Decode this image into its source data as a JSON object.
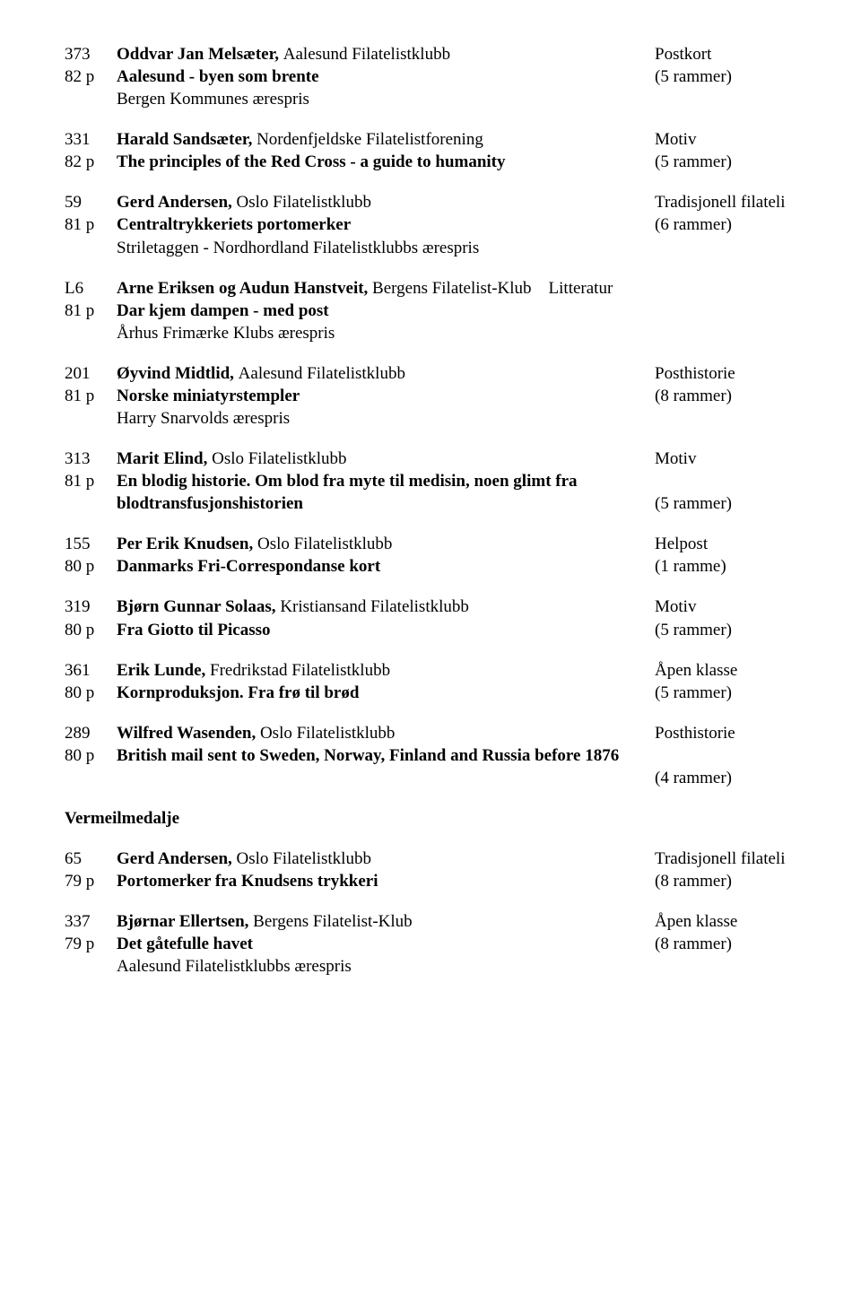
{
  "entries": [
    {
      "l1_left": "373",
      "l1_mid_b": "Oddvar Jan Melsæter, ",
      "l1_mid_n": "Aalesund Filatelistklubb",
      "l1_right": "Postkort",
      "l2_left": "82 p",
      "l2_mid_b": "Aalesund - byen som brente",
      "l2_right": "(5 rammer)",
      "l3_mid_n": "Bergen Kommunes ærespris"
    },
    {
      "l1_left": "331",
      "l1_mid_b": "Harald Sandsæter, ",
      "l1_mid_n": "Nordenfjeldske Filatelistforening",
      "l1_right": "Motiv",
      "l2_left": "82 p",
      "l2_mid_b": "The principles of the Red Cross - a guide to humanity",
      "l2_right": "(5 rammer)"
    },
    {
      "l1_left": "59",
      "l1_mid_b": "Gerd Andersen, ",
      "l1_mid_n": "Oslo Filatelistklubb",
      "l1_right": "Tradisjonell filateli",
      "l2_left": "81 p",
      "l2_mid_b": "Centraltrykkeriets portomerker",
      "l2_right": "(6 rammer)",
      "l3_mid_n": "Striletaggen - Nordhordland Filatelistklubbs ærespris"
    },
    {
      "l1_left": "L6",
      "l1_mid_b": "Arne Eriksen og Audun Hanstveit, ",
      "l1_mid_n": "Bergens Filatelist-Klub",
      "l1_right_inline": "Litteratur",
      "l2_left": "81 p",
      "l2_mid_b": "Dar kjem dampen - med post",
      "l3_mid_n": "Århus Frimærke Klubs ærespris"
    },
    {
      "l1_left": "201",
      "l1_mid_b": "Øyvind Midtlid, ",
      "l1_mid_n": "Aalesund Filatelistklubb",
      "l1_right": "Posthistorie",
      "l2_left": "81 p",
      "l2_mid_b": "Norske miniatyrstempler",
      "l2_right": "(8 rammer)",
      "l3_mid_n": "Harry Snarvolds ærespris"
    },
    {
      "l1_left": "313",
      "l1_mid_b": "Marit Elind, ",
      "l1_mid_n": "Oslo Filatelistklubb",
      "l1_right": "Motiv",
      "l2_left": "81 p",
      "l2_mid_b": "En blodig historie. Om blod fra myte til medisin, noen glimt fra",
      "l2b_mid_b": "blodtransfusjonshistorien",
      "l2b_right": "(5 rammer)"
    },
    {
      "l1_left": "155",
      "l1_mid_b": "Per Erik Knudsen, ",
      "l1_mid_n": "Oslo Filatelistklubb",
      "l1_right": "Helpost",
      "l2_left": "80 p",
      "l2_mid_b": "Danmarks Fri-Correspondanse kort",
      "l2_right": "(1 ramme)"
    },
    {
      "l1_left": "319",
      "l1_mid_b": "Bjørn Gunnar Solaas, ",
      "l1_mid_n": "Kristiansand Filatelistklubb",
      "l1_right": "Motiv",
      "l2_left": "80 p",
      "l2_mid_b": "Fra Giotto til Picasso",
      "l2_right": "(5 rammer)"
    },
    {
      "l1_left": "361",
      "l1_mid_b": "Erik Lunde, ",
      "l1_mid_n": "Fredrikstad Filatelistklubb",
      "l1_right": "Åpen klasse",
      "l2_left": "80 p",
      "l2_mid_b": "Kornproduksjon. Fra frø til brød",
      "l2_right": "(5 rammer)"
    },
    {
      "l1_left": "289",
      "l1_mid_b": "Wilfred Wasenden, ",
      "l1_mid_n": "Oslo Filatelistklubb",
      "l1_right": "Posthistorie",
      "l2_left": "80 p",
      "l2_mid_b": "British mail sent to Sweden, Norway, Finland and Russia before 1876",
      "l2b_right_only": "(4 rammer)"
    }
  ],
  "section": "Vermeilmedalje",
  "entries2": [
    {
      "l1_left": "65",
      "l1_mid_b": "Gerd Andersen, ",
      "l1_mid_n": "Oslo Filatelistklubb",
      "l1_right": "Tradisjonell filateli",
      "l2_left": "79 p",
      "l2_mid_b": "Portomerker fra Knudsens trykkeri",
      "l2_right": "(8 rammer)"
    },
    {
      "l1_left": "337",
      "l1_mid_b": "Bjørnar Ellertsen, ",
      "l1_mid_n": "Bergens Filatelist-Klub",
      "l1_right": "Åpen klasse",
      "l2_left": "79 p",
      "l2_mid_b": "Det gåtefulle havet",
      "l2_right": "(8 rammer)",
      "l3_mid_n": "Aalesund Filatelistklubbs ærespris"
    }
  ]
}
